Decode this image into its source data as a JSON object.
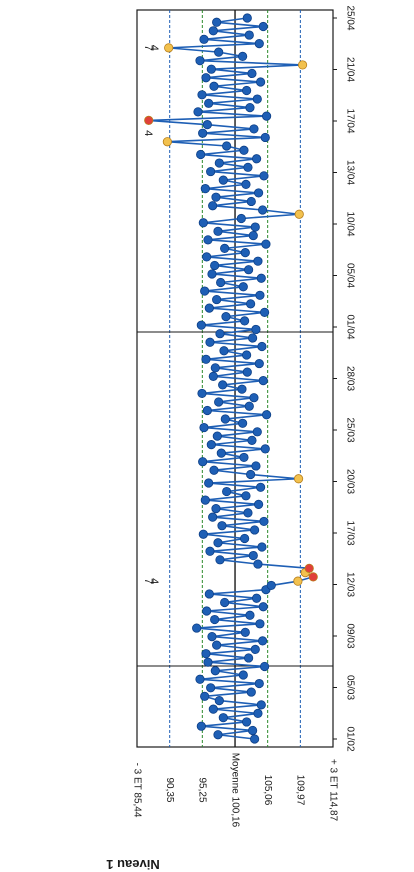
{
  "chart_data": {
    "type": "scatter",
    "title": "Niveau 1",
    "orientation": "rotated-90",
    "x_ticks": [
      "01/02",
      "05/03",
      "09/03",
      "12/03",
      "17/03",
      "20/03",
      "25/03",
      "28/03",
      "01/04",
      "05/04",
      "10/04",
      "13/04",
      "17/04",
      "21/04",
      "25/04"
    ],
    "y_limits": [
      {
        "label": "+ 3 ET 114,87",
        "value": 114.87,
        "color": "#1a1a1a"
      },
      {
        "label": "109,97",
        "value": 109.97,
        "color": "#1e5fb5"
      },
      {
        "label": "105,06",
        "value": 105.06,
        "color": "#1a1a1a"
      },
      {
        "label": "Moyenne 100,16",
        "value": 100.16,
        "color": "#1a1a1a"
      },
      {
        "label": "95,25",
        "value": 95.25,
        "color": "#1a1a1a"
      },
      {
        "label": "90,35",
        "value": 90.35,
        "color": "#1e5fb5"
      },
      {
        "label": "- 3 ET 85,44",
        "value": 85.44,
        "color": "#1a1a1a"
      }
    ],
    "ylim": [
      85.44,
      114.87
    ],
    "rule_marks": [
      {
        "text": "7",
        "x_index": 37
      },
      {
        "text": "4",
        "x_index": 37
      },
      {
        "text": "4",
        "x_index": 142
      },
      {
        "text": "4",
        "x_index": 162
      },
      {
        "text": "7",
        "x_index": 162
      }
    ],
    "colors": {
      "normal": "#1e5fb5",
      "warning": "#f2c14e",
      "alarm": "#e0403a",
      "sd2": "#2c8a2c",
      "sd3": "#1e5fb5"
    },
    "values": [
      {
        "x": 0,
        "y": 103.1,
        "s": "n"
      },
      {
        "x": 1,
        "y": 97.6,
        "s": "n"
      },
      {
        "x": 2,
        "y": 102.8,
        "s": "n"
      },
      {
        "x": 3,
        "y": 95.1,
        "s": "n"
      },
      {
        "x": 4,
        "y": 101.9,
        "s": "n"
      },
      {
        "x": 5,
        "y": 98.4,
        "s": "n"
      },
      {
        "x": 6,
        "y": 103.6,
        "s": "n"
      },
      {
        "x": 7,
        "y": 96.9,
        "s": "n"
      },
      {
        "x": 8,
        "y": 104.1,
        "s": "n"
      },
      {
        "x": 9,
        "y": 97.8,
        "s": "n"
      },
      {
        "x": 10,
        "y": 95.6,
        "s": "n"
      },
      {
        "x": 11,
        "y": 102.6,
        "s": "n"
      },
      {
        "x": 12,
        "y": 96.5,
        "s": "n"
      },
      {
        "x": 13,
        "y": 103.8,
        "s": "n"
      },
      {
        "x": 14,
        "y": 94.9,
        "s": "n"
      },
      {
        "x": 15,
        "y": 101.4,
        "s": "n"
      },
      {
        "x": 16,
        "y": 97.2,
        "s": "n"
      },
      {
        "x": 17,
        "y": 104.6,
        "s": "n"
      },
      {
        "x": 18,
        "y": 96.1,
        "s": "n"
      },
      {
        "x": 19,
        "y": 102.2,
        "s": "n"
      },
      {
        "x": 20,
        "y": 95.8,
        "s": "n"
      },
      {
        "x": 21,
        "y": 103.2,
        "s": "n"
      },
      {
        "x": 22,
        "y": 97.4,
        "s": "n"
      },
      {
        "x": 23,
        "y": 104.3,
        "s": "n"
      },
      {
        "x": 24,
        "y": 96.7,
        "s": "n"
      },
      {
        "x": 25,
        "y": 101.7,
        "s": "n"
      },
      {
        "x": 26,
        "y": 94.4,
        "s": "n"
      },
      {
        "x": 27,
        "y": 103.9,
        "s": "n"
      },
      {
        "x": 28,
        "y": 97.1,
        "s": "n"
      },
      {
        "x": 29,
        "y": 102.4,
        "s": "n"
      },
      {
        "x": 30,
        "y": 95.9,
        "s": "n"
      },
      {
        "x": 31,
        "y": 104.4,
        "s": "n"
      },
      {
        "x": 32,
        "y": 98.6,
        "s": "n"
      },
      {
        "x": 33,
        "y": 103.4,
        "s": "n"
      },
      {
        "x": 34,
        "y": 96.3,
        "s": "n"
      },
      {
        "x": 35,
        "y": 104.8,
        "s": "n"
      },
      {
        "x": 36,
        "y": 105.6,
        "s": "n"
      },
      {
        "x": 37,
        "y": 109.6,
        "s": "w"
      },
      {
        "x": 38,
        "y": 111.9,
        "s": "a"
      },
      {
        "x": 39,
        "y": 110.7,
        "s": "w"
      },
      {
        "x": 40,
        "y": 111.3,
        "s": "a"
      },
      {
        "x": 41,
        "y": 103.6,
        "s": "n"
      },
      {
        "x": 42,
        "y": 97.9,
        "s": "n"
      },
      {
        "x": 43,
        "y": 102.9,
        "s": "n"
      },
      {
        "x": 44,
        "y": 96.4,
        "s": "n"
      },
      {
        "x": 45,
        "y": 104.2,
        "s": "n"
      },
      {
        "x": 46,
        "y": 97.6,
        "s": "n"
      },
      {
        "x": 47,
        "y": 101.6,
        "s": "n"
      },
      {
        "x": 48,
        "y": 95.4,
        "s": "n"
      },
      {
        "x": 49,
        "y": 103.1,
        "s": "n"
      },
      {
        "x": 50,
        "y": 98.2,
        "s": "n"
      },
      {
        "x": 51,
        "y": 104.5,
        "s": "n"
      },
      {
        "x": 52,
        "y": 96.8,
        "s": "n"
      },
      {
        "x": 53,
        "y": 102.1,
        "s": "n"
      },
      {
        "x": 54,
        "y": 97.3,
        "s": "n"
      },
      {
        "x": 55,
        "y": 103.7,
        "s": "n"
      },
      {
        "x": 56,
        "y": 95.7,
        "s": "n"
      },
      {
        "x": 57,
        "y": 101.8,
        "s": "n"
      },
      {
        "x": 58,
        "y": 98.9,
        "s": "n"
      },
      {
        "x": 59,
        "y": 104.0,
        "s": "n"
      },
      {
        "x": 60,
        "y": 96.2,
        "s": "n"
      },
      {
        "x": 61,
        "y": 109.7,
        "s": "w"
      },
      {
        "x": 62,
        "y": 102.5,
        "s": "n"
      },
      {
        "x": 63,
        "y": 97.0,
        "s": "n"
      },
      {
        "x": 64,
        "y": 103.3,
        "s": "n"
      },
      {
        "x": 65,
        "y": 95.3,
        "s": "n"
      },
      {
        "x": 66,
        "y": 101.5,
        "s": "n"
      },
      {
        "x": 67,
        "y": 98.1,
        "s": "n"
      },
      {
        "x": 68,
        "y": 104.7,
        "s": "n"
      },
      {
        "x": 69,
        "y": 96.6,
        "s": "n"
      },
      {
        "x": 70,
        "y": 102.7,
        "s": "n"
      },
      {
        "x": 71,
        "y": 97.5,
        "s": "n"
      },
      {
        "x": 72,
        "y": 103.5,
        "s": "n"
      },
      {
        "x": 73,
        "y": 95.5,
        "s": "n"
      },
      {
        "x": 74,
        "y": 101.3,
        "s": "n"
      },
      {
        "x": 75,
        "y": 98.7,
        "s": "n"
      },
      {
        "x": 76,
        "y": 104.9,
        "s": "n"
      },
      {
        "x": 77,
        "y": 96.0,
        "s": "n"
      },
      {
        "x": 78,
        "y": 102.3,
        "s": "n"
      },
      {
        "x": 79,
        "y": 97.7,
        "s": "n"
      },
      {
        "x": 80,
        "y": 103.0,
        "s": "n"
      },
      {
        "x": 81,
        "y": 95.2,
        "s": "n"
      },
      {
        "x": 82,
        "y": 101.2,
        "s": "n"
      },
      {
        "x": 83,
        "y": 98.3,
        "s": "n"
      },
      {
        "x": 84,
        "y": 104.4,
        "s": "n"
      },
      {
        "x": 85,
        "y": 96.9,
        "s": "n"
      },
      {
        "x": 86,
        "y": 102.0,
        "s": "n"
      },
      {
        "x": 87,
        "y": 97.2,
        "s": "n"
      },
      {
        "x": 88,
        "y": 103.8,
        "s": "n"
      },
      {
        "x": 89,
        "y": 95.8,
        "s": "n"
      },
      {
        "x": 90,
        "y": 101.9,
        "s": "n"
      },
      {
        "x": 91,
        "y": 98.5,
        "s": "n"
      },
      {
        "x": 92,
        "y": 104.2,
        "s": "n"
      },
      {
        "x": 93,
        "y": 96.4,
        "s": "n"
      },
      {
        "x": 94,
        "y": 102.8,
        "s": "n"
      },
      {
        "x": 95,
        "y": 97.9,
        "s": "n"
      },
      {
        "x": 96,
        "y": 103.3,
        "s": "n"
      },
      {
        "x": 97,
        "y": 95.1,
        "s": "n"
      },
      {
        "x": 98,
        "y": 101.6,
        "s": "n"
      },
      {
        "x": 99,
        "y": 98.8,
        "s": "n"
      },
      {
        "x": 100,
        "y": 104.6,
        "s": "n"
      },
      {
        "x": 101,
        "y": 96.3,
        "s": "n"
      },
      {
        "x": 102,
        "y": 102.5,
        "s": "n"
      },
      {
        "x": 103,
        "y": 97.4,
        "s": "n"
      },
      {
        "x": 104,
        "y": 103.9,
        "s": "n"
      },
      {
        "x": 105,
        "y": 95.6,
        "s": "n"
      },
      {
        "x": 106,
        "y": 101.4,
        "s": "n"
      },
      {
        "x": 107,
        "y": 98.0,
        "s": "n"
      },
      {
        "x": 108,
        "y": 104.1,
        "s": "n"
      },
      {
        "x": 109,
        "y": 96.7,
        "s": "n"
      },
      {
        "x": 110,
        "y": 102.2,
        "s": "n"
      },
      {
        "x": 111,
        "y": 97.1,
        "s": "n"
      },
      {
        "x": 112,
        "y": 103.6,
        "s": "n"
      },
      {
        "x": 113,
        "y": 95.9,
        "s": "n"
      },
      {
        "x": 114,
        "y": 101.7,
        "s": "n"
      },
      {
        "x": 115,
        "y": 98.6,
        "s": "n"
      },
      {
        "x": 116,
        "y": 104.8,
        "s": "n"
      },
      {
        "x": 117,
        "y": 96.1,
        "s": "n"
      },
      {
        "x": 118,
        "y": 102.9,
        "s": "n"
      },
      {
        "x": 119,
        "y": 97.6,
        "s": "n"
      },
      {
        "x": 120,
        "y": 103.2,
        "s": "n"
      },
      {
        "x": 121,
        "y": 95.4,
        "s": "n"
      },
      {
        "x": 122,
        "y": 101.1,
        "s": "n"
      },
      {
        "x": 123,
        "y": 109.8,
        "s": "w"
      },
      {
        "x": 124,
        "y": 104.3,
        "s": "n"
      },
      {
        "x": 125,
        "y": 96.8,
        "s": "n"
      },
      {
        "x": 126,
        "y": 102.6,
        "s": "n"
      },
      {
        "x": 127,
        "y": 97.3,
        "s": "n"
      },
      {
        "x": 128,
        "y": 103.7,
        "s": "n"
      },
      {
        "x": 129,
        "y": 95.7,
        "s": "n"
      },
      {
        "x": 130,
        "y": 101.8,
        "s": "n"
      },
      {
        "x": 131,
        "y": 98.4,
        "s": "n"
      },
      {
        "x": 132,
        "y": 104.5,
        "s": "n"
      },
      {
        "x": 133,
        "y": 96.5,
        "s": "n"
      },
      {
        "x": 134,
        "y": 102.1,
        "s": "n"
      },
      {
        "x": 135,
        "y": 97.8,
        "s": "n"
      },
      {
        "x": 136,
        "y": 103.4,
        "s": "n"
      },
      {
        "x": 137,
        "y": 95.0,
        "s": "n"
      },
      {
        "x": 138,
        "y": 101.5,
        "s": "n"
      },
      {
        "x": 139,
        "y": 98.9,
        "s": "n"
      },
      {
        "x": 140,
        "y": 90.0,
        "s": "w"
      },
      {
        "x": 141,
        "y": 104.7,
        "s": "n"
      },
      {
        "x": 142,
        "y": 95.3,
        "s": "n"
      },
      {
        "x": 143,
        "y": 103.0,
        "s": "n"
      },
      {
        "x": 144,
        "y": 96.0,
        "s": "n"
      },
      {
        "x": 145,
        "y": 87.2,
        "s": "a"
      },
      {
        "x": 146,
        "y": 104.9,
        "s": "n"
      },
      {
        "x": 147,
        "y": 94.6,
        "s": "n"
      },
      {
        "x": 148,
        "y": 102.4,
        "s": "n"
      },
      {
        "x": 149,
        "y": 96.2,
        "s": "n"
      },
      {
        "x": 150,
        "y": 103.5,
        "s": "n"
      },
      {
        "x": 151,
        "y": 95.2,
        "s": "n"
      },
      {
        "x": 152,
        "y": 101.9,
        "s": "n"
      },
      {
        "x": 153,
        "y": 97.0,
        "s": "n"
      },
      {
        "x": 154,
        "y": 104.0,
        "s": "n"
      },
      {
        "x": 155,
        "y": 95.8,
        "s": "n"
      },
      {
        "x": 156,
        "y": 102.7,
        "s": "n"
      },
      {
        "x": 157,
        "y": 96.6,
        "s": "n"
      },
      {
        "x": 158,
        "y": 110.3,
        "s": "w"
      },
      {
        "x": 159,
        "y": 94.9,
        "s": "n"
      },
      {
        "x": 160,
        "y": 101.3,
        "s": "n"
      },
      {
        "x": 161,
        "y": 97.7,
        "s": "n"
      },
      {
        "x": 162,
        "y": 90.2,
        "s": "w"
      },
      {
        "x": 163,
        "y": 103.8,
        "s": "n"
      },
      {
        "x": 164,
        "y": 95.5,
        "s": "n"
      },
      {
        "x": 165,
        "y": 102.3,
        "s": "n"
      },
      {
        "x": 166,
        "y": 96.9,
        "s": "n"
      },
      {
        "x": 167,
        "y": 104.4,
        "s": "n"
      },
      {
        "x": 168,
        "y": 97.4,
        "s": "n"
      },
      {
        "x": 169,
        "y": 102.0,
        "s": "n"
      }
    ]
  }
}
